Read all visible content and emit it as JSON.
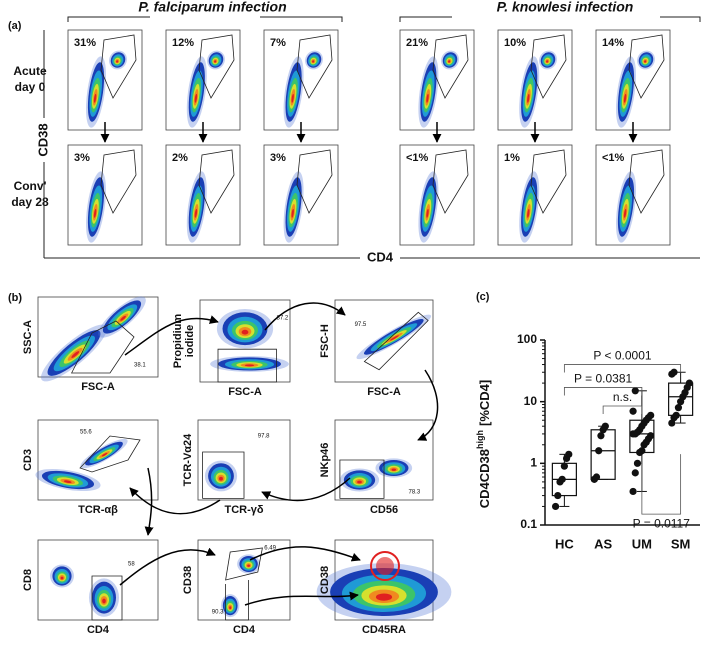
{
  "panel_a": {
    "label": "(a)",
    "groups": [
      {
        "title": "P. falciparum infection"
      },
      {
        "title": "P. knowlesi infection"
      }
    ],
    "rows": [
      {
        "label": [
          "Acute",
          "day 0"
        ]
      },
      {
        "label": [
          "Conv'",
          "day 28"
        ]
      }
    ],
    "y_label": "CD38",
    "x_label": "CD4",
    "percentages": [
      [
        "31%",
        "12%",
        "7%",
        "21%",
        "10%",
        "14%"
      ],
      [
        "3%",
        "2%",
        "3%",
        "<1%",
        "1%",
        "<1%"
      ]
    ]
  },
  "panel_b": {
    "label": "(b)",
    "plots": [
      {
        "y_label": [
          "SSC-A"
        ],
        "x_label": "FSC-A",
        "gates": [
          "38.1"
        ]
      },
      {
        "y_label": [
          "Propidium",
          "iodide"
        ],
        "x_label": "FSC-A",
        "gates": [
          "87.2"
        ]
      },
      {
        "y_label": [
          "FSC-H"
        ],
        "x_label": "FSC-A",
        "gates": [
          "97.5"
        ]
      },
      {
        "y_label": [
          "CD3"
        ],
        "x_label": "TCR-αβ",
        "gates": [
          "55.6"
        ]
      },
      {
        "y_label": [
          "TCR-Vα24"
        ],
        "x_label": "TCR-γδ",
        "gates": [
          "97.8"
        ]
      },
      {
        "y_label": [
          "NKp46"
        ],
        "x_label": "CD56",
        "gates": [
          "78.3"
        ]
      },
      {
        "y_label": [
          "CD8"
        ],
        "x_label": "CD4",
        "gates": [
          "58"
        ]
      },
      {
        "y_label": [
          "CD38"
        ],
        "x_label": "CD4",
        "gates": [
          "6.49",
          "90.3"
        ]
      },
      {
        "y_label": [
          "CD38"
        ],
        "x_label": "CD45RA",
        "gates": []
      }
    ]
  },
  "chart_data": {
    "type": "box",
    "label": "(c)",
    "y_label": {
      "main": "CD4CD38",
      "sup": "high",
      "unit": "[%CD4]"
    },
    "categories": [
      "HC",
      "AS",
      "UM",
      "SM"
    ],
    "min": [
      0.2,
      0.55,
      0.35,
      4.5
    ],
    "q1": [
      0.3,
      0.55,
      1.5,
      6
    ],
    "median": [
      0.55,
      1.6,
      3,
      12
    ],
    "q3": [
      1.0,
      3.5,
      5,
      20
    ],
    "max": [
      1.4,
      4,
      15,
      30
    ],
    "points": [
      [
        0.2,
        0.3,
        0.5,
        0.55,
        0.9,
        1.2,
        1.4
      ],
      [
        0.55,
        0.6,
        1.6,
        2.8,
        3.5,
        4
      ],
      [
        0.35,
        0.7,
        1.0,
        1.5,
        1.6,
        2.0,
        2.2,
        2.5,
        2.8,
        3.0,
        3.0,
        3.2,
        3.5,
        4.0,
        4.5,
        5.0,
        5.5,
        6.0,
        7.0,
        15
      ],
      [
        4.5,
        5.5,
        6.0,
        8,
        10,
        12,
        14,
        17,
        20,
        28,
        30
      ]
    ],
    "log_scale": true,
    "ylim": [
      0.1,
      100
    ],
    "yticks": [
      0.1,
      1,
      10,
      100
    ],
    "color": "#111111",
    "annotations": [
      {
        "text": "P < 0.0001",
        "from": 0,
        "to": 3,
        "at": 40
      },
      {
        "text": "P = 0.0381",
        "from": 0,
        "to": 2,
        "at": 17
      },
      {
        "text": "n.s.",
        "from": 1,
        "to": 2,
        "at": 8.5
      },
      {
        "text": "P = 0.0117",
        "from": 2,
        "to": 3,
        "at": 0.15
      }
    ]
  }
}
